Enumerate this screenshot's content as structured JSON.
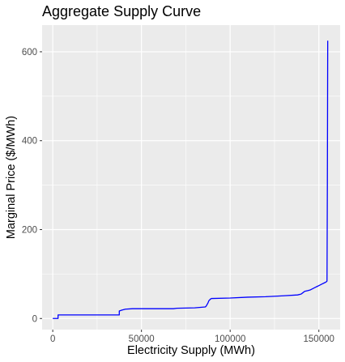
{
  "chart_data": {
    "type": "line",
    "title": "Aggregate Supply Curve",
    "xlabel": "Electricity Supply (MWh)",
    "ylabel": "Marginal Price ($/MWh)",
    "xlim": [
      -6000,
      162000
    ],
    "ylim": [
      -25,
      660
    ],
    "x_ticks": [
      0,
      50000,
      100000,
      150000
    ],
    "x_tick_labels": [
      "0",
      "50000",
      "100000",
      "150000"
    ],
    "y_ticks": [
      0,
      200,
      400,
      600
    ],
    "y_tick_labels": [
      "0",
      "200",
      "400",
      "600"
    ],
    "grid": true,
    "legend": "none",
    "colors": {
      "panel_background": "#ebebeb",
      "grid_line": "#ffffff",
      "series_line": "#0000ff"
    },
    "series": [
      {
        "x": [
          0,
          3000,
          3000,
          37500,
          37500,
          39000,
          41000,
          45000,
          60000,
          68000,
          70000,
          80000,
          86000,
          86500,
          87500,
          88000,
          89000,
          89500,
          90000,
          100000,
          110000,
          120000,
          130000,
          138000,
          140000,
          141000,
          142000,
          143000,
          144000,
          145000,
          146000,
          147000,
          148000,
          149000,
          150000,
          151000,
          152000,
          153000,
          154000,
          154300,
          154600,
          154800,
          155000
        ],
        "y": [
          0,
          0,
          8,
          8,
          17,
          19,
          21,
          22,
          22,
          22,
          23,
          24,
          26,
          28,
          35,
          40,
          44,
          45,
          45,
          46,
          48,
          49,
          51,
          53,
          55,
          58,
          61,
          62,
          63,
          64,
          66,
          68,
          70,
          72,
          74,
          76,
          78,
          80,
          82,
          83,
          84,
          300,
          625
        ]
      }
    ]
  }
}
